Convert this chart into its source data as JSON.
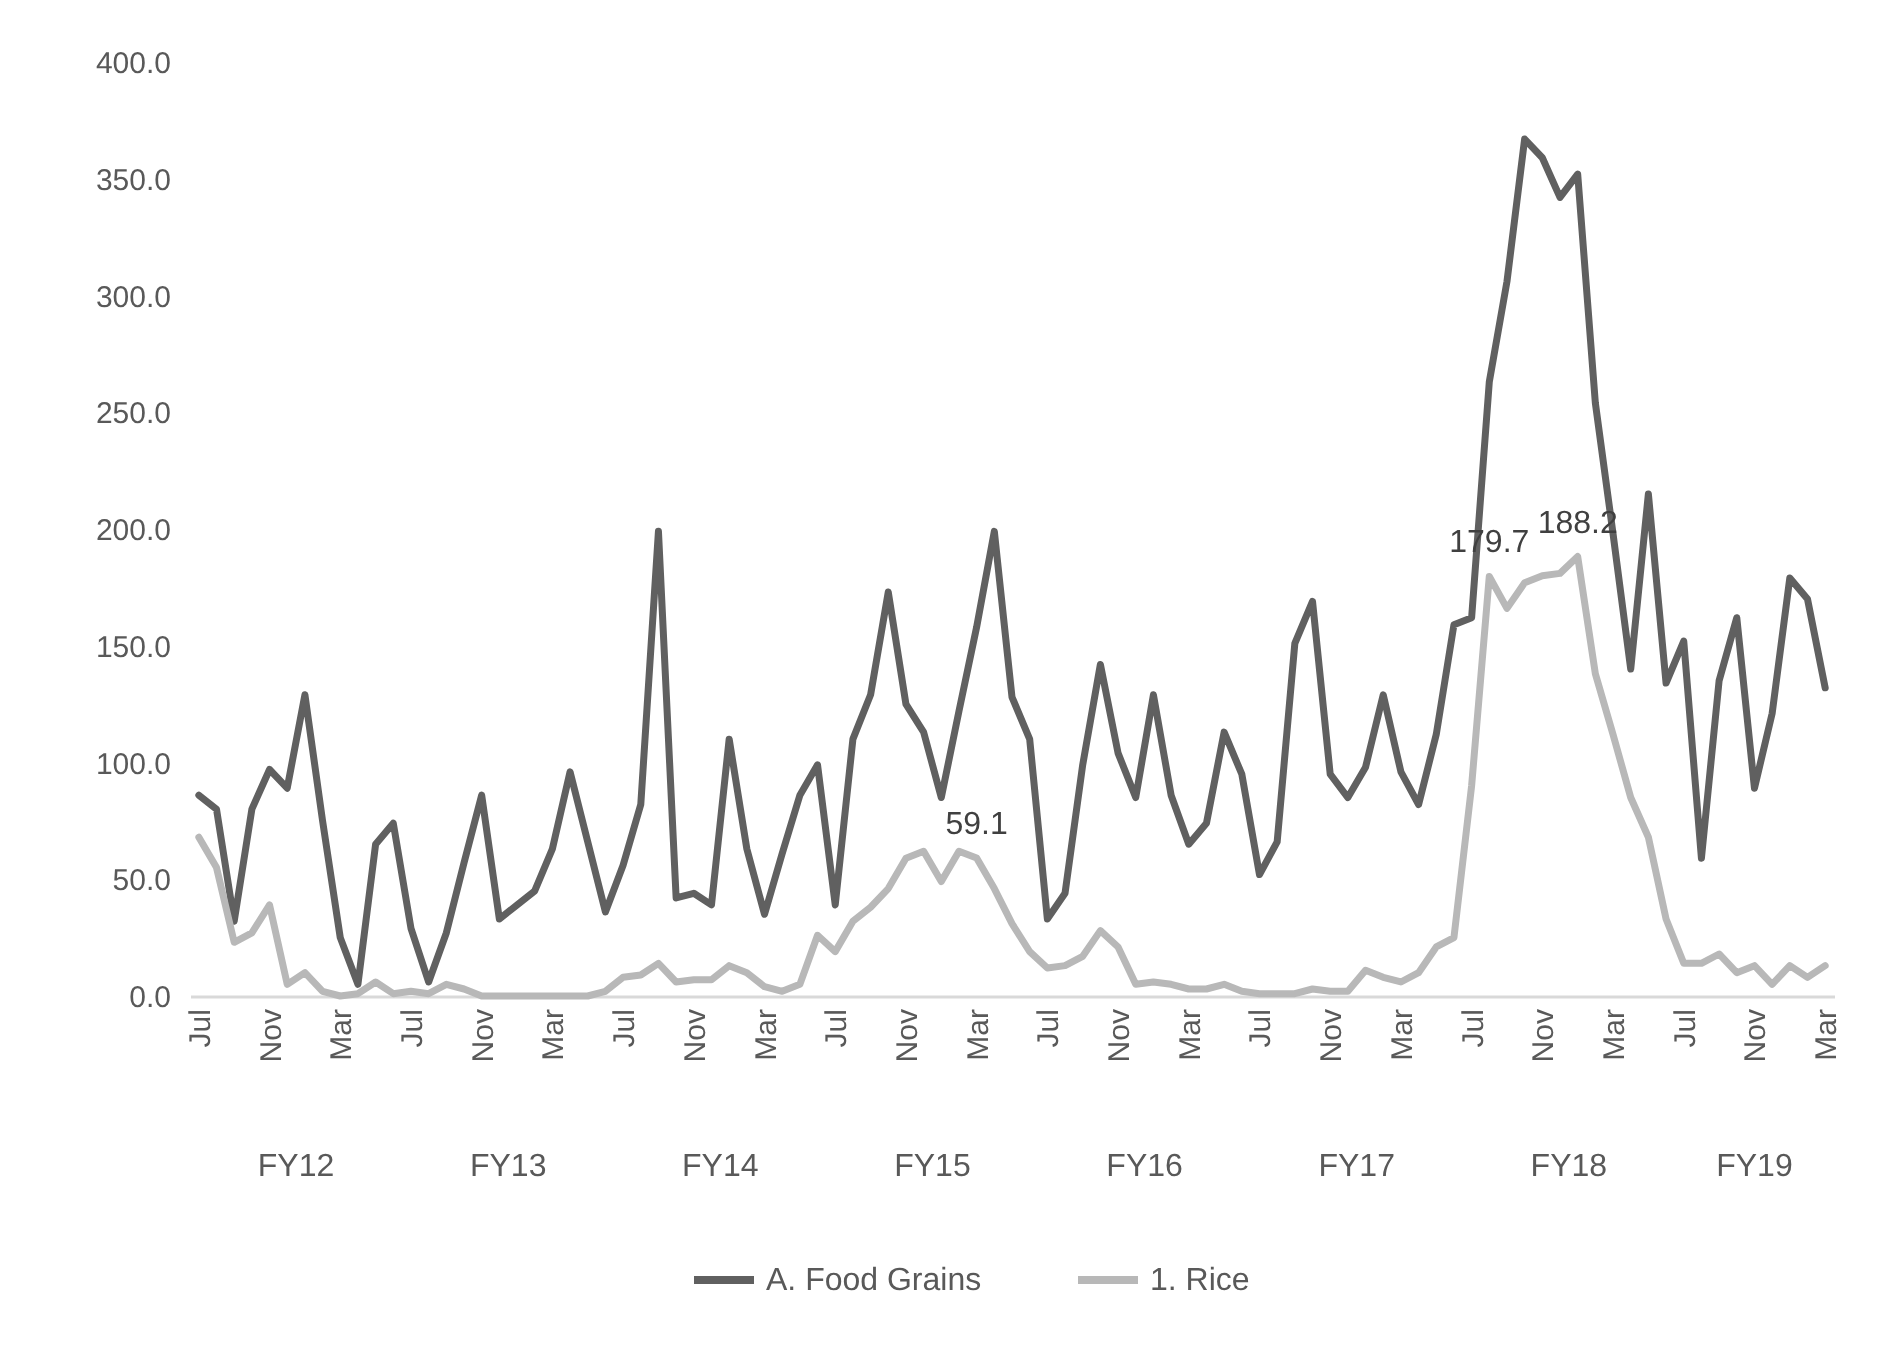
{
  "chart_data": {
    "type": "line",
    "categories": [
      "Jul",
      null,
      null,
      null,
      "Nov",
      null,
      null,
      null,
      "Mar",
      null,
      null,
      null,
      "Jul",
      null,
      null,
      null,
      "Nov",
      null,
      null,
      null,
      "Mar",
      null,
      null,
      null,
      "Jul",
      null,
      null,
      null,
      "Nov",
      null,
      null,
      null,
      "Mar",
      null,
      null,
      null,
      "Jul",
      null,
      null,
      null,
      "Nov",
      null,
      null,
      null,
      "Mar",
      null,
      null,
      null,
      "Jul",
      null,
      null,
      null,
      "Nov",
      null,
      null,
      null,
      "Mar",
      null,
      null,
      null,
      "Jul",
      null,
      null,
      null,
      "Nov",
      null,
      null,
      null,
      "Mar",
      null,
      null,
      null,
      "Jul",
      null,
      null,
      null,
      "Nov",
      null,
      null,
      null,
      "Mar",
      null,
      null,
      null,
      "Jul",
      null,
      null,
      null,
      "Nov",
      null,
      null,
      null,
      "Mar"
    ],
    "series": [
      {
        "name": "A. Food Grains",
        "color": "#606060",
        "values": [
          86,
          80,
          32,
          80,
          97,
          89,
          129,
          75,
          25,
          5,
          65,
          74,
          29,
          6,
          27,
          57,
          86,
          33,
          39,
          45,
          63,
          96,
          66,
          36,
          56,
          82,
          199,
          42,
          44,
          39,
          110,
          63,
          35,
          61,
          86,
          99,
          39,
          110,
          129,
          173,
          125,
          113,
          85,
          122,
          158,
          199,
          128,
          110,
          33,
          44,
          99,
          142,
          104,
          85,
          129,
          86,
          65,
          74,
          113,
          95,
          52,
          66,
          151,
          169,
          95,
          85,
          98,
          129,
          96,
          82,
          112,
          159,
          162,
          263,
          306,
          367,
          359,
          342,
          352,
          254,
          198,
          140,
          215,
          134,
          152,
          59,
          135,
          162,
          89,
          121,
          179,
          170,
          132
        ]
      },
      {
        "name": "1. Rice",
        "color": "#b8b8b8",
        "values": [
          68,
          55,
          23,
          27,
          39,
          5,
          10,
          2,
          0,
          1,
          6,
          1,
          2,
          1,
          5,
          3,
          0,
          0,
          0,
          0,
          0,
          0,
          0,
          2,
          8,
          9,
          14,
          6,
          7,
          7,
          13,
          10,
          4,
          2,
          5,
          26,
          19,
          32,
          38,
          46,
          59,
          62,
          49,
          62,
          59.1,
          46,
          31,
          19,
          12,
          13,
          17,
          28,
          21,
          5,
          6,
          5,
          3,
          3,
          5,
          2,
          1,
          1,
          1,
          3,
          2,
          2,
          11,
          8,
          6,
          10,
          21,
          25,
          90,
          179.7,
          166,
          177,
          180,
          181,
          188.2,
          138,
          112,
          85,
          68,
          33,
          14,
          14,
          18,
          10,
          13,
          5,
          13,
          8,
          13
        ],
        "value_labels": [
          null,
          null,
          null,
          null,
          null,
          null,
          null,
          null,
          null,
          null,
          null,
          null,
          null,
          null,
          null,
          null,
          null,
          null,
          null,
          null,
          null,
          null,
          null,
          null,
          null,
          null,
          null,
          null,
          null,
          null,
          null,
          null,
          null,
          null,
          null,
          null,
          null,
          null,
          null,
          null,
          null,
          null,
          null,
          null,
          "59.1",
          null,
          null,
          null,
          null,
          null,
          null,
          null,
          null,
          null,
          null,
          null,
          null,
          null,
          null,
          null,
          null,
          null,
          null,
          null,
          null,
          null,
          null,
          null,
          null,
          null,
          null,
          null,
          null,
          "179.7",
          null,
          null,
          null,
          null,
          "188.2",
          null,
          null,
          null,
          null,
          null,
          null,
          null,
          null,
          null,
          null,
          null,
          null,
          null,
          null
        ]
      }
    ],
    "ylim": [
      0,
      400
    ],
    "yticks": [
      {
        "value": 0,
        "label": "0.0"
      },
      {
        "value": 50,
        "label": "50.0"
      },
      {
        "value": 100,
        "label": "100.0"
      },
      {
        "value": 150,
        "label": "150.0"
      },
      {
        "value": 200,
        "label": "200.0"
      },
      {
        "value": 250,
        "label": "250.0"
      },
      {
        "value": 300,
        "label": "300.0"
      },
      {
        "value": 350,
        "label": "350.0"
      },
      {
        "value": 400,
        "label": "400.0"
      }
    ],
    "annotations": [
      "FY12",
      "FY13",
      "FY14",
      "FY15",
      "FY16",
      "FY17",
      "FY18",
      "FY19"
    ],
    "grid": false,
    "legend": "bottom",
    "marker": "none",
    "line_style": "solid"
  }
}
